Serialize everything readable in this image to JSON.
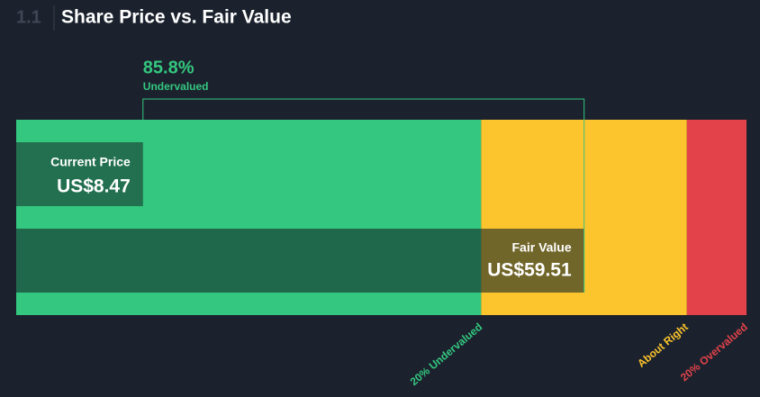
{
  "section_number": "1.1",
  "chart_data": {
    "type": "valuation-bar",
    "title": "Share Price vs. Fair Value",
    "xlim": [
      -6.2,
      78.3
    ],
    "zones": [
      {
        "name": "20% Undervalued",
        "color": "#34c77f",
        "end": 47.6
      },
      {
        "name": "About Right",
        "color": "#fcc42d",
        "end": 71.4
      },
      {
        "name": "20% Overvalued",
        "color": "#e3424a"
      }
    ],
    "current": {
      "label": "Current Price",
      "value": 8.47,
      "value_label": "US$8.47"
    },
    "fair": {
      "label": "Fair Value",
      "value": 59.51,
      "value_label": "US$59.51"
    },
    "discount": {
      "value": 85.8,
      "value_label": "85.8%",
      "label": "Undervalued"
    }
  }
}
